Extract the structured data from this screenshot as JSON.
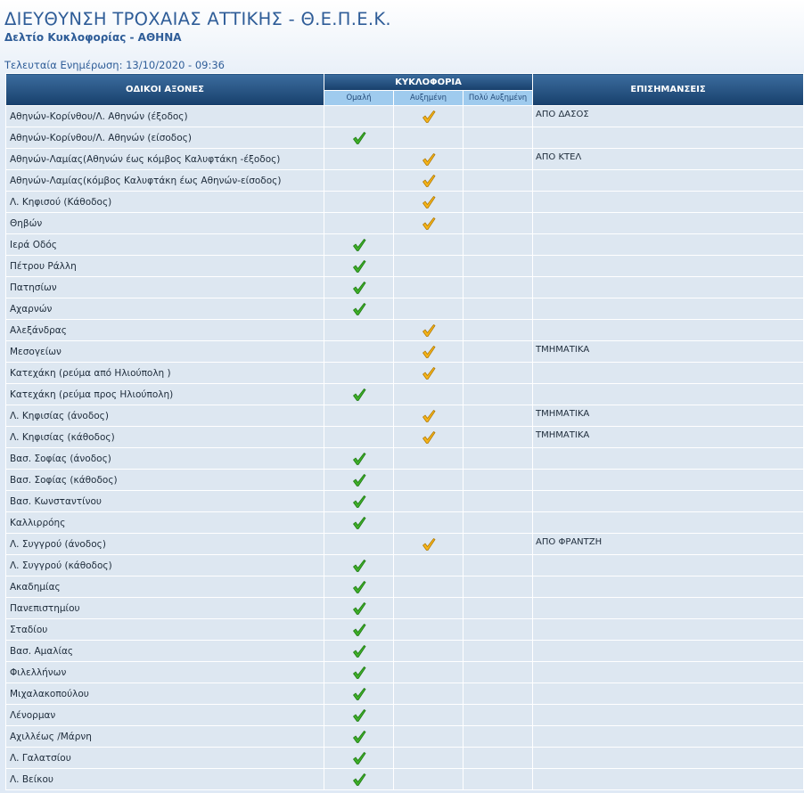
{
  "header": {
    "title": "ΔΙΕΥΘΥΝΣΗ ΤΡΟΧΑΙΑΣ ΑΤΤΙΚΗΣ - Θ.Ε.Π.Ε.Κ.",
    "subtitle": "Δελτίο Κυκλοφορίας - ΑΘΗΝΑ",
    "updated_label": "Τελευταία Ενημέρωση:",
    "updated": "13/10/2020 - 09:36"
  },
  "table": {
    "columns": {
      "road": "ΟΔΙΚΟΙ ΑΞΟΝΕΣ",
      "traffic": "ΚΥΚΛΟΦΟΡΙΑ",
      "notes": "ΕΠΙΣΗΜΑΝΣΕΙΣ"
    },
    "levels": [
      "Ομαλή",
      "Αυξημένη",
      "Πολύ Αυξημένη"
    ],
    "rows": [
      {
        "road": "Αθηνών-Κορίνθου/Λ. Αθηνών (έξοδος)",
        "level": 1,
        "note": "ΑΠΟ ΔΑΣΟΣ"
      },
      {
        "road": "Αθηνών-Κορίνθου/Λ. Αθηνών (είσοδος)",
        "level": 0
      },
      {
        "road": "Αθηνών-Λαμίας(Αθηνών έως κόμβος Καλυφτάκη -έξοδος)",
        "level": 1,
        "note": "ΑΠΟ ΚΤΕΛ"
      },
      {
        "road": "Αθηνών-Λαμίας(κόμβος Καλυφτάκη έως Αθηνών-είσοδος)",
        "level": 1
      },
      {
        "road": "Λ. Κηφισού (Κάθοδος)",
        "level": 1
      },
      {
        "road": "Θηβών",
        "level": 1
      },
      {
        "road": "Ιερά Οδός",
        "level": 0
      },
      {
        "road": "Πέτρου Ράλλη",
        "level": 0
      },
      {
        "road": "Πατησίων",
        "level": 0
      },
      {
        "road": "Αχαρνών",
        "level": 0
      },
      {
        "road": "Αλεξάνδρας",
        "level": 1
      },
      {
        "road": "Μεσογείων",
        "level": 1,
        "note": "ΤΜΗΜΑΤΙΚΑ"
      },
      {
        "road": "Κατεχάκη (ρεύμα από Ηλιούπολη )",
        "level": 1
      },
      {
        "road": "Κατεχάκη (ρεύμα προς Ηλιούπολη)",
        "level": 0
      },
      {
        "road": "Λ. Κηφισίας (άνοδος)",
        "level": 1,
        "note": "ΤΜΗΜΑΤΙΚΑ"
      },
      {
        "road": "Λ. Κηφισίας (κάθοδος)",
        "level": 1,
        "note": "ΤΜΗΜΑΤΙΚΑ"
      },
      {
        "road": "Βασ. Σοφίας (άνοδος)",
        "level": 0
      },
      {
        "road": "Βασ. Σοφίας (κάθοδος)",
        "level": 0
      },
      {
        "road": "Βασ. Κωνσταντίνου",
        "level": 0
      },
      {
        "road": "Καλλιρρόης",
        "level": 0
      },
      {
        "road": "Λ. Συγγρού (άνοδος)",
        "level": 1,
        "note": "ΑΠΟ ΦΡΑΝΤΖΗ"
      },
      {
        "road": "Λ. Συγγρού (κάθοδος)",
        "level": 0
      },
      {
        "road": "Ακαδημίας",
        "level": 0
      },
      {
        "road": "Πανεπιστημίου",
        "level": 0
      },
      {
        "road": "Σταδίου",
        "level": 0
      },
      {
        "road": "Βασ. Αμαλίας",
        "level": 0
      },
      {
        "road": "Φιλελλήνων",
        "level": 0
      },
      {
        "road": "Μιχαλακοπούλου",
        "level": 0
      },
      {
        "road": "Λένορμαν",
        "level": 0
      },
      {
        "road": "Αχιλλέως /Μάρνη",
        "level": 0
      },
      {
        "road": "Λ. Γαλατσίου",
        "level": 0
      },
      {
        "road": "Λ. Βείκου",
        "level": 0
      }
    ]
  }
}
